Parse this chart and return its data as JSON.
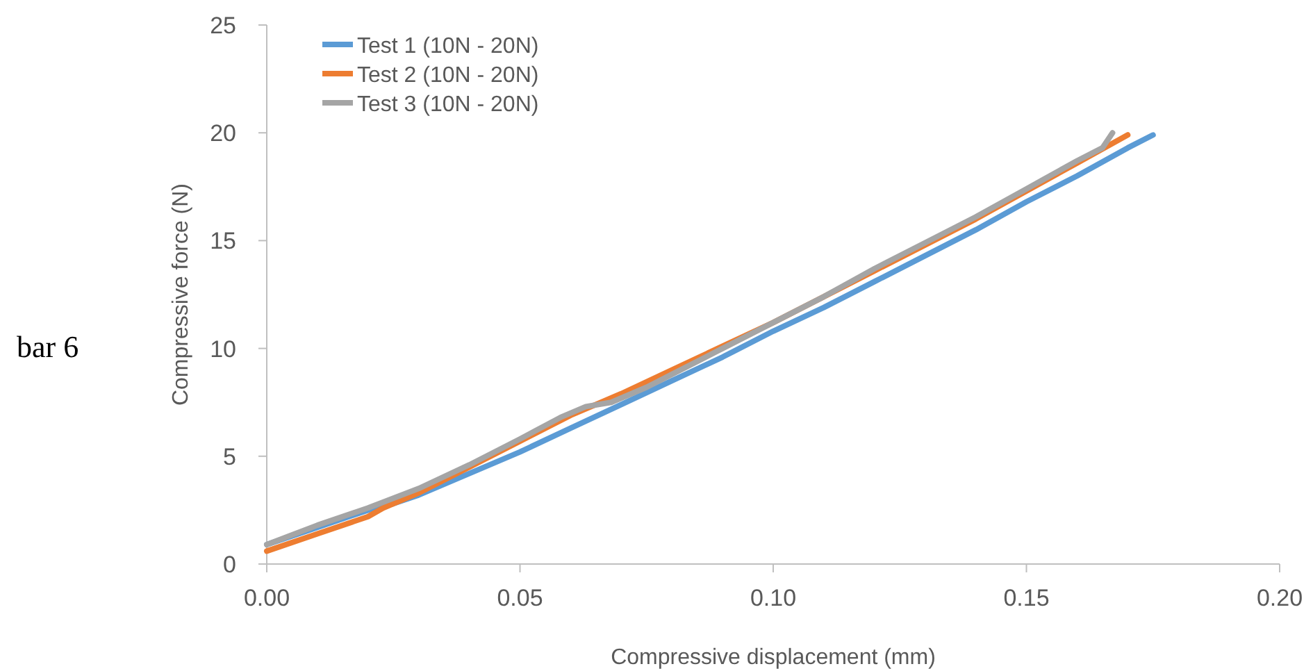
{
  "chart_data": {
    "type": "line",
    "xlabel": "Compressive displacement (mm)",
    "ylabel": "Compressive force (N)",
    "annotations": [
      "bar 6"
    ],
    "xlim": [
      0,
      0.2
    ],
    "ylim": [
      0,
      25
    ],
    "xticks": [
      {
        "value": 0,
        "label": "0.00"
      },
      {
        "value": 0.05,
        "label": "0.05"
      },
      {
        "value": 0.1,
        "label": "0.10"
      },
      {
        "value": 0.15,
        "label": "0.15"
      },
      {
        "value": 0.2,
        "label": "0.20"
      }
    ],
    "yticks": [
      0,
      5,
      10,
      15,
      20,
      25
    ],
    "legend": "top left",
    "marker": "none",
    "line_style": "solid",
    "series": [
      {
        "name": "Test 1 (10N - 20N)",
        "color": "#5b9bd5",
        "x": [
          0,
          0.01,
          0.02,
          0.025,
          0.03,
          0.04,
          0.05,
          0.06,
          0.07,
          0.08,
          0.09,
          0.1,
          0.11,
          0.12,
          0.13,
          0.14,
          0.15,
          0.16,
          0.17,
          0.175
        ],
        "values": [
          0.9,
          1.7,
          2.5,
          2.8,
          3.2,
          4.2,
          5.2,
          6.3,
          7.4,
          8.5,
          9.6,
          10.8,
          11.9,
          13.1,
          14.3,
          15.5,
          16.8,
          18.0,
          19.3,
          19.9
        ]
      },
      {
        "name": "Test 2 (10N - 20N)",
        "color": "#ed7d31",
        "x": [
          0,
          0.01,
          0.02,
          0.023,
          0.03,
          0.04,
          0.05,
          0.06,
          0.07,
          0.08,
          0.09,
          0.1,
          0.11,
          0.12,
          0.13,
          0.14,
          0.15,
          0.16,
          0.17
        ],
        "values": [
          0.6,
          1.4,
          2.2,
          2.6,
          3.3,
          4.5,
          5.7,
          6.9,
          7.9,
          9.0,
          10.1,
          11.2,
          12.4,
          13.6,
          14.8,
          16.0,
          17.3,
          18.6,
          19.9
        ]
      },
      {
        "name": "Test 3 (10N - 20N)",
        "color": "#a5a5a5",
        "x": [
          0,
          0.01,
          0.02,
          0.03,
          0.04,
          0.05,
          0.058,
          0.063,
          0.068,
          0.075,
          0.08,
          0.09,
          0.1,
          0.11,
          0.12,
          0.13,
          0.14,
          0.15,
          0.16,
          0.165,
          0.167
        ],
        "values": [
          0.9,
          1.8,
          2.6,
          3.5,
          4.6,
          5.8,
          6.8,
          7.3,
          7.5,
          8.2,
          8.8,
          10.0,
          11.2,
          12.4,
          13.7,
          14.9,
          16.1,
          17.4,
          18.7,
          19.3,
          20.0
        ]
      }
    ]
  }
}
